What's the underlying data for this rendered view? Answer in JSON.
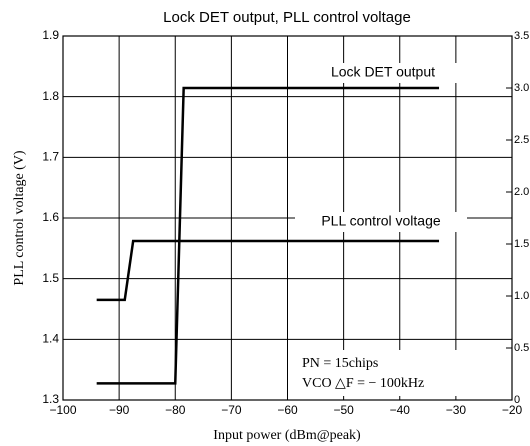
{
  "chart_data": {
    "type": "line",
    "title": "Lock DET output, PLL control voltage",
    "xlabel": "Input power (dBm@peak)",
    "ylabel": "PLL control voltage (V)",
    "xlim": [
      -100,
      -20
    ],
    "xticks": [
      {
        "value": -100,
        "label": "−100"
      },
      {
        "value": -90,
        "label": "−90"
      },
      {
        "value": -80,
        "label": "−80"
      },
      {
        "value": -70,
        "label": "−70"
      },
      {
        "value": -60,
        "label": "−60"
      },
      {
        "value": -50,
        "label": "−50"
      },
      {
        "value": -40,
        "label": "−40"
      },
      {
        "value": -30,
        "label": "−30"
      },
      {
        "value": -20,
        "label": "−20"
      }
    ],
    "ylim": [
      1.3,
      1.9
    ],
    "yticks": [
      1.3,
      1.4,
      1.5,
      1.6,
      1.7,
      1.8,
      1.9
    ],
    "y2lim": [
      0,
      3.5
    ],
    "y2ticks": [
      0,
      0.5,
      {
        "value": 1.0,
        "label": "1.0"
      },
      1.5,
      {
        "value": 2.0,
        "label": "2.0"
      },
      2.5,
      {
        "value": 3.0,
        "label": "3.0"
      },
      3.5
    ],
    "grid": true,
    "series": [
      {
        "name": "Lock DET output",
        "color": "#000000",
        "axis": "y2",
        "x": [
          -94,
          -80,
          -78.5,
          -33
        ],
        "values": [
          0.16,
          0.16,
          3.0,
          3.0
        ]
      },
      {
        "name": "PLL control voltage",
        "color": "#000000",
        "x": [
          -94,
          -89,
          -87.5,
          -33
        ],
        "values": [
          1.465,
          1.465,
          1.562,
          1.562
        ]
      }
    ],
    "annotations": [
      "PN = 15chips",
      "VCO △F = − 100kHz"
    ]
  }
}
